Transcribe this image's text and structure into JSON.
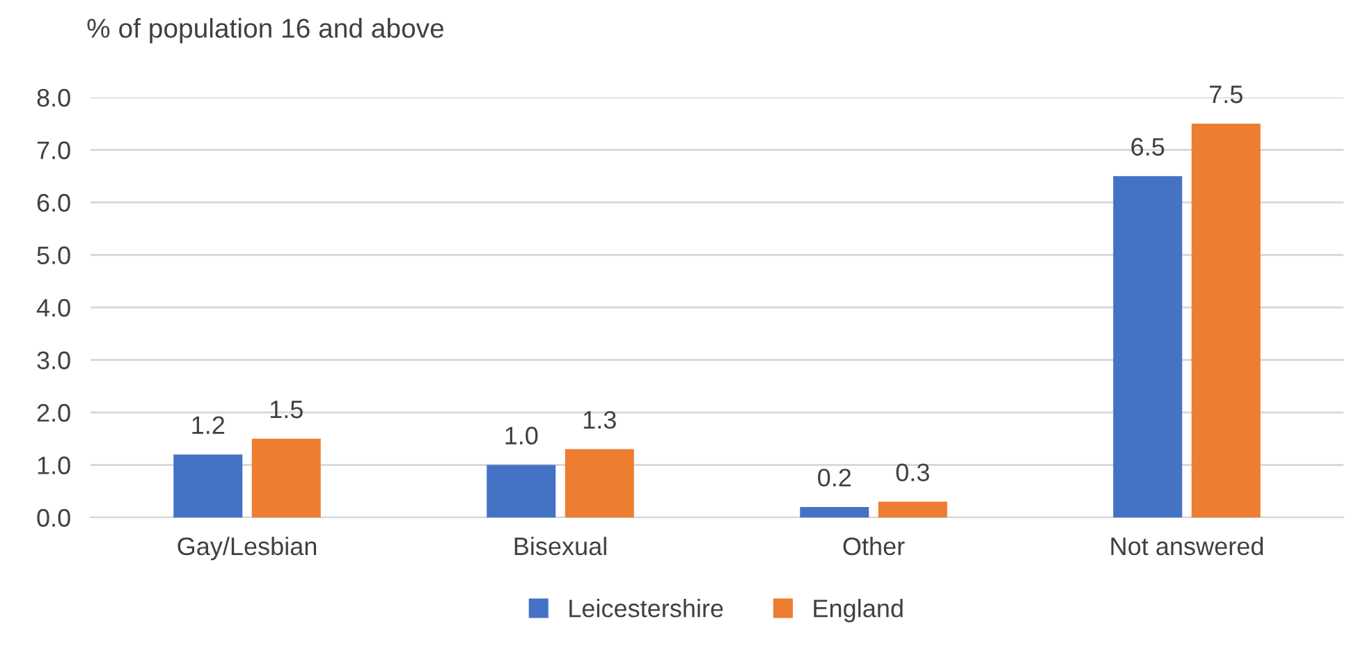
{
  "chart_data": {
    "type": "bar",
    "ylabel": "% of population 16 and above",
    "categories": [
      "Gay/Lesbian",
      "Bisexual",
      "Other",
      "Not answered"
    ],
    "series": [
      {
        "name": "Leicestershire",
        "color": "#4472c4",
        "values": [
          1.2,
          1.0,
          0.2,
          6.5
        ],
        "value_labels": [
          "1.2",
          "1.0",
          "0.2",
          "6.5"
        ]
      },
      {
        "name": "England",
        "color": "#ed7d31",
        "values": [
          1.5,
          1.3,
          0.3,
          7.5
        ],
        "value_labels": [
          "1.5",
          "1.3",
          "0.3",
          "7.5"
        ]
      }
    ],
    "ylim": [
      0,
      8
    ],
    "yticks": [
      {
        "value": 0,
        "label": "0.0"
      },
      {
        "value": 1,
        "label": "1.0"
      },
      {
        "value": 2,
        "label": "2.0"
      },
      {
        "value": 3,
        "label": "3.0"
      },
      {
        "value": 4,
        "label": "4.0"
      },
      {
        "value": 5,
        "label": "5.0"
      },
      {
        "value": 6,
        "label": "6.0"
      },
      {
        "value": 7,
        "label": "7.0"
      },
      {
        "value": 8,
        "label": "8.0"
      }
    ],
    "grid": "y",
    "legend": "bottom"
  }
}
